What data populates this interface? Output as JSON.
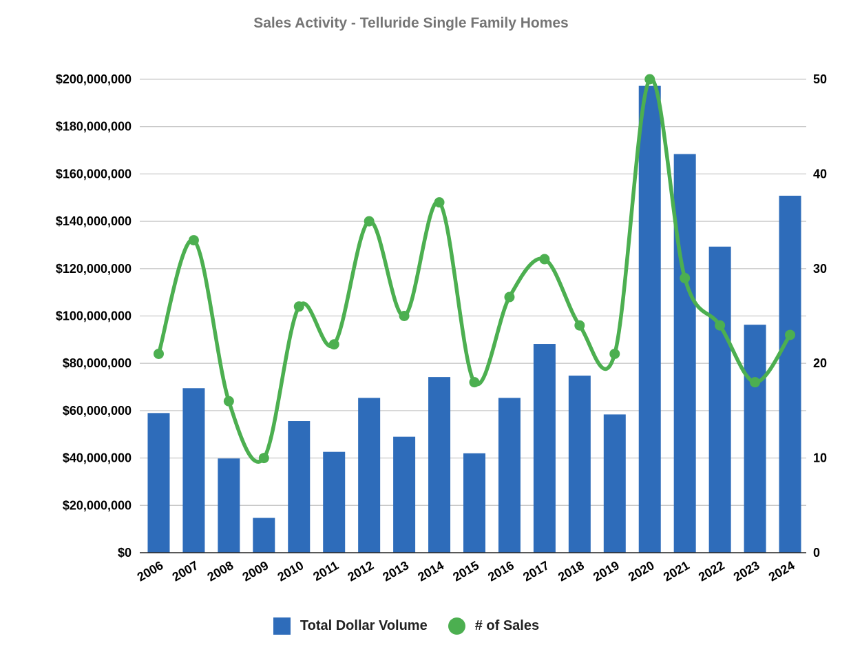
{
  "chart_data": {
    "type": "bar",
    "title": "Sales Activity - Telluride Single Family Homes",
    "categories": [
      "2006",
      "2007",
      "2008",
      "2009",
      "2010",
      "2011",
      "2012",
      "2013",
      "2014",
      "2015",
      "2016",
      "2017",
      "2018",
      "2019",
      "2020",
      "2021",
      "2022",
      "2023",
      "2024"
    ],
    "series": [
      {
        "name": "Total Dollar Volume",
        "type": "bar",
        "axis": "left",
        "color": "#2e6cba",
        "values": [
          59000000,
          69500000,
          39800000,
          14700000,
          55600000,
          42600000,
          65400000,
          49000000,
          74200000,
          42000000,
          65400000,
          88200000,
          74800000,
          58400000,
          197200000,
          168400000,
          129300000,
          96300000,
          150800000
        ]
      },
      {
        "name": "# of Sales",
        "type": "line",
        "axis": "right",
        "color": "#4caf50",
        "smooth": true,
        "markers": true,
        "values": [
          21,
          33,
          16,
          10,
          26,
          22,
          35,
          25,
          37,
          18,
          27,
          31,
          24,
          21,
          50,
          29,
          24,
          18,
          23
        ]
      }
    ],
    "y_left": {
      "ylim": [
        0,
        200000000
      ],
      "tick_values": [
        0,
        20000000,
        40000000,
        60000000,
        80000000,
        100000000,
        120000000,
        140000000,
        160000000,
        180000000,
        200000000
      ],
      "tick_labels": [
        "$0",
        "$20,000,000",
        "$40,000,000",
        "$60,000,000",
        "$80,000,000",
        "$100,000,000",
        "$120,000,000",
        "$140,000,000",
        "$160,000,000",
        "$180,000,000",
        "$200,000,000"
      ]
    },
    "y_right": {
      "ylim": [
        0,
        50
      ],
      "tick_values": [
        0,
        10,
        20,
        30,
        40,
        50
      ],
      "tick_labels": [
        "0",
        "10",
        "20",
        "30",
        "40",
        "50"
      ]
    },
    "grid": true,
    "legend_position": "bottom"
  }
}
